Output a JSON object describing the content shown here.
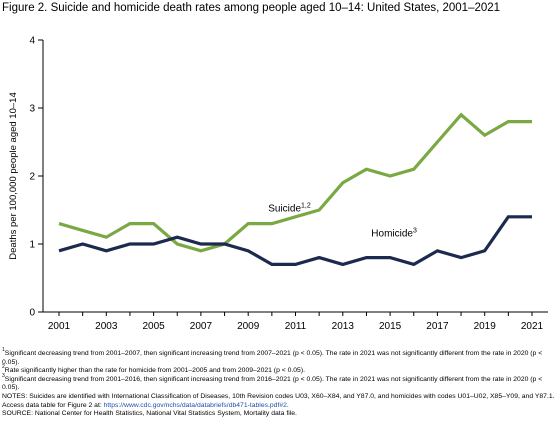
{
  "figure_title": "Figure 2. Suicide and homicide death rates among people aged 10–14: United States, 2001–2021",
  "colors": {
    "suicide": "#7aa843",
    "homicide": "#1b2a4e",
    "axis": "#000000"
  },
  "chart_data": {
    "type": "line",
    "title": "Figure 2. Suicide and homicide death rates among people aged 10–14: United States, 2001–2021",
    "xlabel": "",
    "ylabel": "Deaths per 100,000 people aged 10–14",
    "xlim": [
      2001,
      2021
    ],
    "ylim": [
      0,
      4
    ],
    "x_ticks": [
      "2001",
      "2003",
      "2005",
      "2007",
      "2009",
      "2011",
      "2013",
      "2015",
      "2017",
      "2019",
      "2021"
    ],
    "y_ticks": [
      "0",
      "1",
      "2",
      "3",
      "4"
    ],
    "grid": false,
    "x": [
      2001,
      2002,
      2003,
      2004,
      2005,
      2006,
      2007,
      2008,
      2009,
      2010,
      2011,
      2012,
      2013,
      2014,
      2015,
      2016,
      2017,
      2018,
      2019,
      2020,
      2021
    ],
    "series": [
      {
        "name": "Suicide",
        "sup": "1,2",
        "color": "#7aa843",
        "values": [
          1.3,
          1.2,
          1.1,
          1.3,
          1.3,
          1.0,
          0.9,
          1.0,
          1.3,
          1.3,
          1.4,
          1.5,
          1.9,
          2.1,
          2.0,
          2.1,
          2.5,
          2.9,
          2.6,
          2.8,
          2.8
        ]
      },
      {
        "name": "Homicide",
        "sup": "3",
        "color": "#1b2a4e",
        "values": [
          0.9,
          1.0,
          0.9,
          1.0,
          1.0,
          1.1,
          1.0,
          1.0,
          0.9,
          0.7,
          0.7,
          0.8,
          0.7,
          0.8,
          0.8,
          0.7,
          0.9,
          0.8,
          0.9,
          1.4,
          1.4
        ]
      }
    ]
  },
  "notes": {
    "n1_sup": "1",
    "n1": "Significant decreasing trend from 2001–2007, then significant increasing trend from 2007–2021 (p < 0.05). The rate in 2021 was not significantly different from the rate in 2020 (p < 0.05).",
    "n2_sup": "2",
    "n2": "Rate significantly higher than the rate for homicide from 2001–2005 and from 2009–2021 (p < 0.05).",
    "n3_sup": "3",
    "n3": "Significant decreasing trend from 2001–2016, then significant increasing trend from 2016–2021 (p < 0.05). The rate in 2021 was not significantly different from the rate in 2020 (p < 0.05).",
    "notes_text": "NOTES: Suicides are identified with International Classification of Diseases, 10th Revision codes U03, X60–X84, and Y87.0, and homicides with codes U01–U02, X85–Y09, and Y87.1. Access data table for Figure 2 at:",
    "notes_link": "https://www.cdc.gov/nchs/data/databriefs/db471-tables.pdf#2",
    "notes_end": ".",
    "source": "SOURCE: National Center for Health Statistics, National Vital Statistics System, Mortality data file."
  }
}
